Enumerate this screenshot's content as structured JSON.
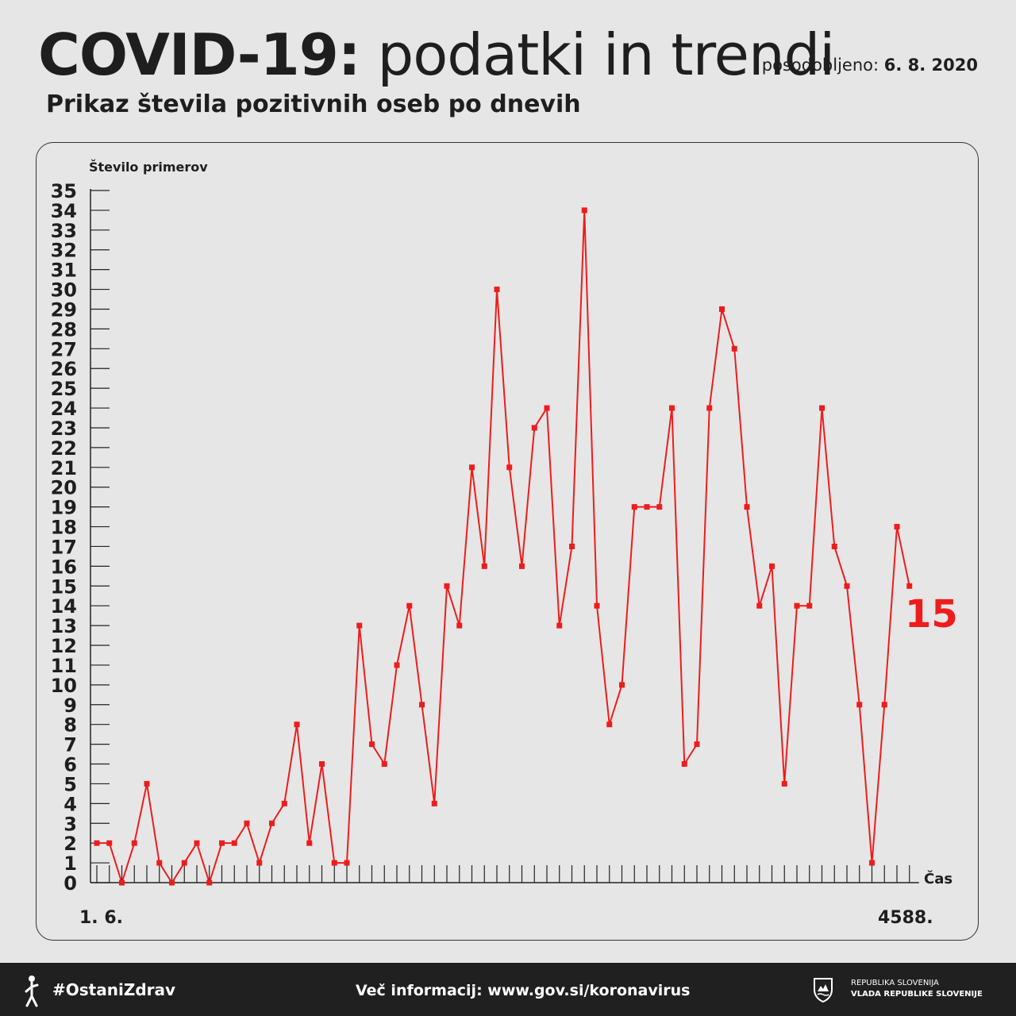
{
  "header": {
    "title_bold": "COVID-19:",
    "title_rest": " podatki in trendi",
    "updated_label": "posodobljeno: ",
    "updated_date": "6. 8. 2020",
    "subtitle": "Prikaz števila pozitivnih oseb po dnevih"
  },
  "chart_data": {
    "type": "line",
    "ylabel": "Število primerov",
    "xlabel": "Čas",
    "ylim": [
      0,
      35
    ],
    "y_ticks": [
      0,
      1,
      2,
      3,
      4,
      5,
      6,
      7,
      8,
      9,
      10,
      11,
      12,
      13,
      14,
      15,
      16,
      17,
      18,
      19,
      20,
      21,
      22,
      23,
      24,
      25,
      26,
      27,
      28,
      29,
      30,
      31,
      32,
      33,
      34,
      35
    ],
    "x_start_label": "1. 6.",
    "x_end_label": "4588.",
    "values": [
      2,
      2,
      0,
      2,
      5,
      1,
      0,
      1,
      2,
      0,
      2,
      2,
      3,
      1,
      3,
      4,
      8,
      2,
      6,
      1,
      1,
      13,
      7,
      6,
      11,
      14,
      9,
      4,
      15,
      13,
      21,
      16,
      30,
      21,
      16,
      23,
      24,
      13,
      17,
      34,
      14,
      8,
      10,
      19,
      19,
      19,
      24,
      6,
      7,
      24,
      29,
      27,
      19,
      14,
      16,
      5,
      14,
      14,
      24,
      17,
      15,
      9,
      1,
      9,
      18,
      15
    ],
    "last_value_label": "15",
    "line_color": "#ee1c1c"
  },
  "footer": {
    "hashtag": "#OstaniZdrav",
    "more_info": "Več informacij: www.gov.si/koronavirus",
    "gov_line1": "REPUBLIKA SLOVENIJA",
    "gov_line2": "VLADA REPUBLIKE SLOVENIJE"
  },
  "icons": [
    "person-figure-icon",
    "coat-of-arms-icon"
  ]
}
